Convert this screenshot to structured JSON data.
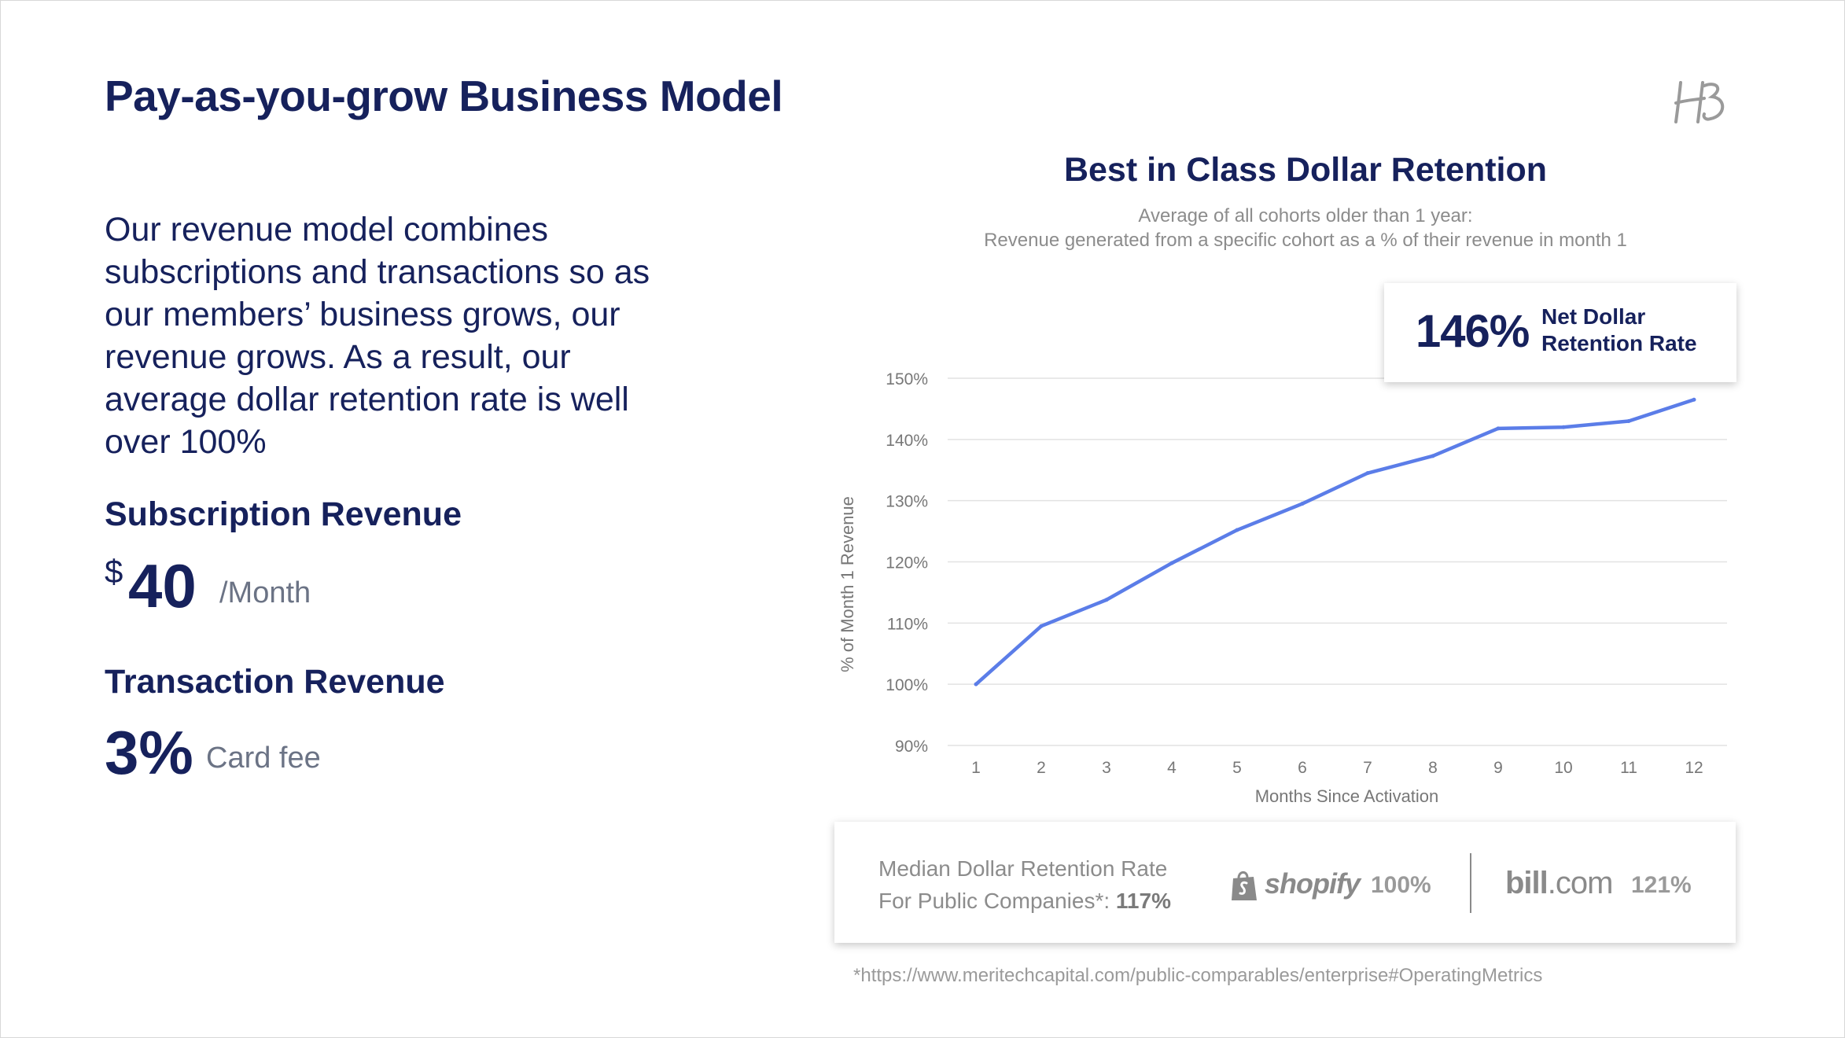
{
  "page": {
    "title": "Pay-as-you-grow Business Model",
    "logo_text": "HB"
  },
  "left": {
    "intro": "Our revenue model combines subscriptions and transactions so as our members’ business grows, our revenue grows. As a result, our average dollar retention rate is well over 100%",
    "subscription": {
      "heading": "Subscription Revenue",
      "currency": "$",
      "amount": "40",
      "unit": "/Month"
    },
    "transaction": {
      "heading": "Transaction Revenue",
      "amount": "3%",
      "unit": "Card fee"
    }
  },
  "callout": {
    "value": "146%",
    "label": "Net Dollar Retention Rate"
  },
  "comparison": {
    "line1": "Median Dollar Retention Rate",
    "line2_prefix": "For Public Companies*: ",
    "line2_value": "117%",
    "companies": [
      {
        "name": "shopify",
        "value": "100%"
      },
      {
        "name_main": "bill",
        "name_suffix": ".com",
        "value": "121%"
      }
    ]
  },
  "footnote": "*https://www.meritechcapital.com/public-comparables/enterprise#OperatingMetrics",
  "colors": {
    "navy": "#16215c",
    "line": "#5b7de8",
    "grid": "#e2e2e2",
    "muted": "#8c8c8c"
  },
  "chart_data": {
    "type": "line",
    "title": "Best in Class Dollar Retention",
    "subtitle_lines": [
      "Average of all cohorts older than 1 year:",
      "Revenue generated from a specific cohort as a % of their revenue in month 1"
    ],
    "xlabel": "Months Since Activation",
    "ylabel": "% of Month 1 Revenue",
    "x": [
      1,
      2,
      3,
      4,
      5,
      6,
      7,
      8,
      9,
      10,
      11,
      12
    ],
    "series": [
      {
        "values": [
          100,
          109.5,
          113.8,
          119.8,
          125.2,
          129.5,
          134.5,
          137.3,
          141.8,
          142,
          143,
          146.5
        ]
      }
    ],
    "ylim": [
      90,
      150
    ],
    "yticks": [
      150,
      140,
      130,
      120,
      110,
      100,
      90
    ],
    "ytick_labels": [
      "150%",
      "140%",
      "130%",
      "120%",
      "110%",
      "100%",
      "90%"
    ],
    "grid": true,
    "legend": "none"
  }
}
